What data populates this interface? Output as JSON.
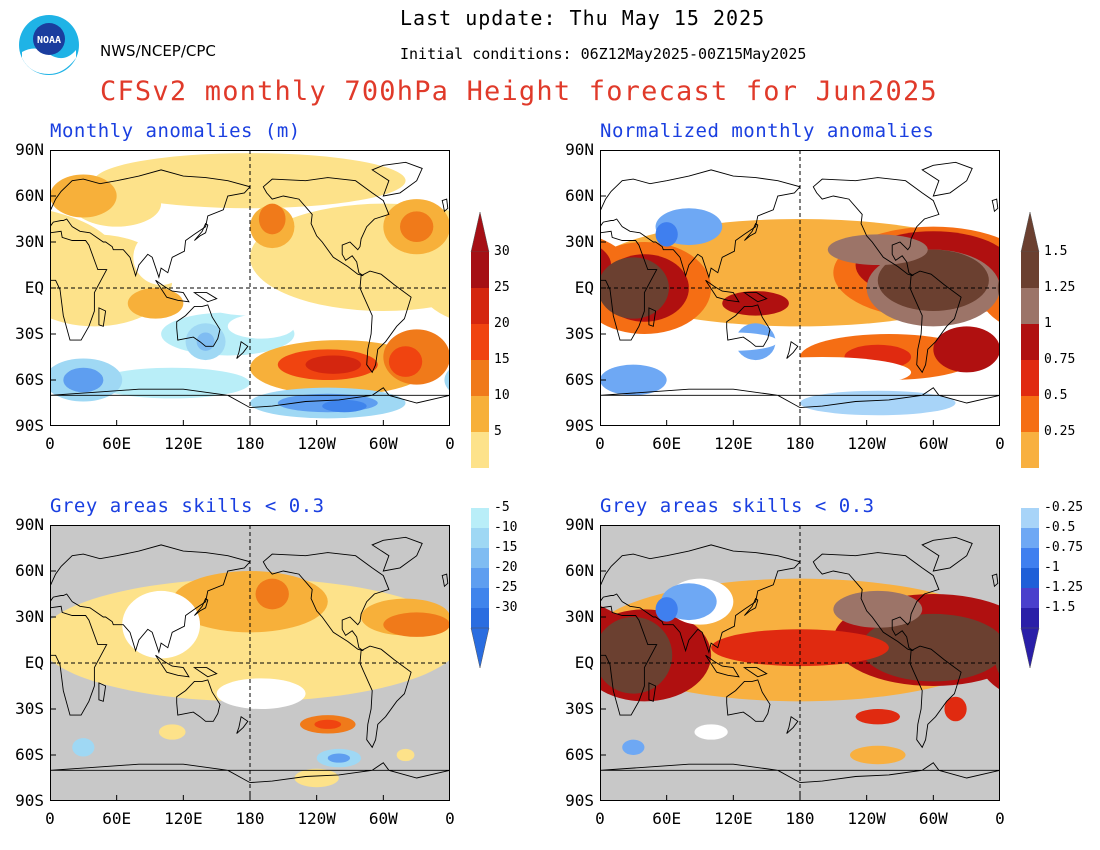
{
  "header": {
    "last_update": "Last update: Thu May 15 2025",
    "initial_conditions": "Initial conditions: 06Z12May2025-00Z15May2025",
    "agency": "NWS/NCEP/CPC",
    "logo_text": "NOAA",
    "title": "CFSv2 monthly 700hPa Height forecast for Jun2025"
  },
  "panels": [
    {
      "title": "Monthly anomalies (m)"
    },
    {
      "title": "Normalized monthly anomalies"
    },
    {
      "title": "Grey areas skills < 0.3"
    },
    {
      "title": "Grey areas skills < 0.3"
    }
  ],
  "axes": {
    "lat_labels": [
      "90N",
      "60N",
      "30N",
      "EQ",
      "30S",
      "60S",
      "90S"
    ],
    "lon_labels": [
      "0",
      "60E",
      "120E",
      "180",
      "120W",
      "60W",
      "0"
    ]
  },
  "colorbars": {
    "height": {
      "labels": [
        "30",
        "25",
        "20",
        "15",
        "10",
        "5",
        "-5",
        "-10",
        "-15",
        "-20",
        "-25",
        "-30"
      ],
      "colors_top": [
        "#a50f15",
        "#d4260f",
        "#f04410",
        "#f07a1a",
        "#f7b03a",
        "#fde28a"
      ],
      "colors_bottom": [
        "#b9eef8",
        "#9fd8f4",
        "#7fbcf2",
        "#5e9ef0",
        "#3f84ec",
        "#2a6de0"
      ]
    },
    "normalized": {
      "labels": [
        "1.5",
        "1.25",
        "1",
        "0.75",
        "0.5",
        "0.25",
        "-0.25",
        "-0.5",
        "-0.75",
        "-1",
        "-1.25",
        "-1.5"
      ],
      "colors_top": [
        "#6b4030",
        "#9c7468",
        "#b01010",
        "#e02a10",
        "#f56e14",
        "#f8b040"
      ],
      "colors_bottom": [
        "#a8d4f8",
        "#6ea8f4",
        "#3f7fef",
        "#1e5fd8",
        "#4a40cc",
        "#2a1fa8"
      ]
    }
  }
}
